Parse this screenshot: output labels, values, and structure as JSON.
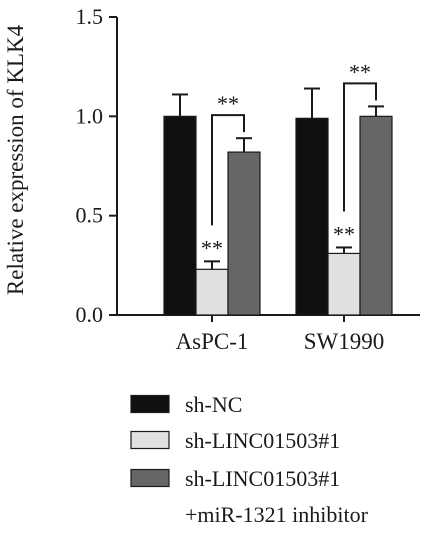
{
  "chart_data": {
    "type": "bar",
    "ylabel": "Relative expression of KLK4",
    "ylim": [
      0,
      1.5
    ],
    "yticks": [
      "0.0",
      "0.5",
      "1.0",
      "1.5"
    ],
    "categories": [
      "AsPC-1",
      "SW1990"
    ],
    "series": [
      {
        "name": "sh-NC",
        "color": "#101010",
        "values": [
          1.0,
          0.99
        ],
        "errors": [
          0.11,
          0.15
        ]
      },
      {
        "name": "sh-LINC01503#1",
        "color": "#e0e0e0",
        "values": [
          0.23,
          0.31
        ],
        "errors": [
          0.04,
          0.03
        ]
      },
      {
        "name": "sh-LINC01503#1 +miR-1321 inhibitor",
        "legend_lines": [
          "sh-LINC01503#1",
          "+miR-1321 inhibitor"
        ],
        "color": "#666666",
        "values": [
          0.82,
          1.0
        ],
        "errors": [
          0.07,
          0.05
        ]
      }
    ],
    "significance": [
      {
        "category": 0,
        "series": 1,
        "label": "**"
      },
      {
        "category": 0,
        "bracket": [
          1,
          2
        ],
        "label": "**"
      },
      {
        "category": 1,
        "series": 1,
        "label": "**"
      },
      {
        "category": 1,
        "bracket": [
          1,
          2
        ],
        "label": "**"
      }
    ],
    "legend_position": "bottom"
  }
}
